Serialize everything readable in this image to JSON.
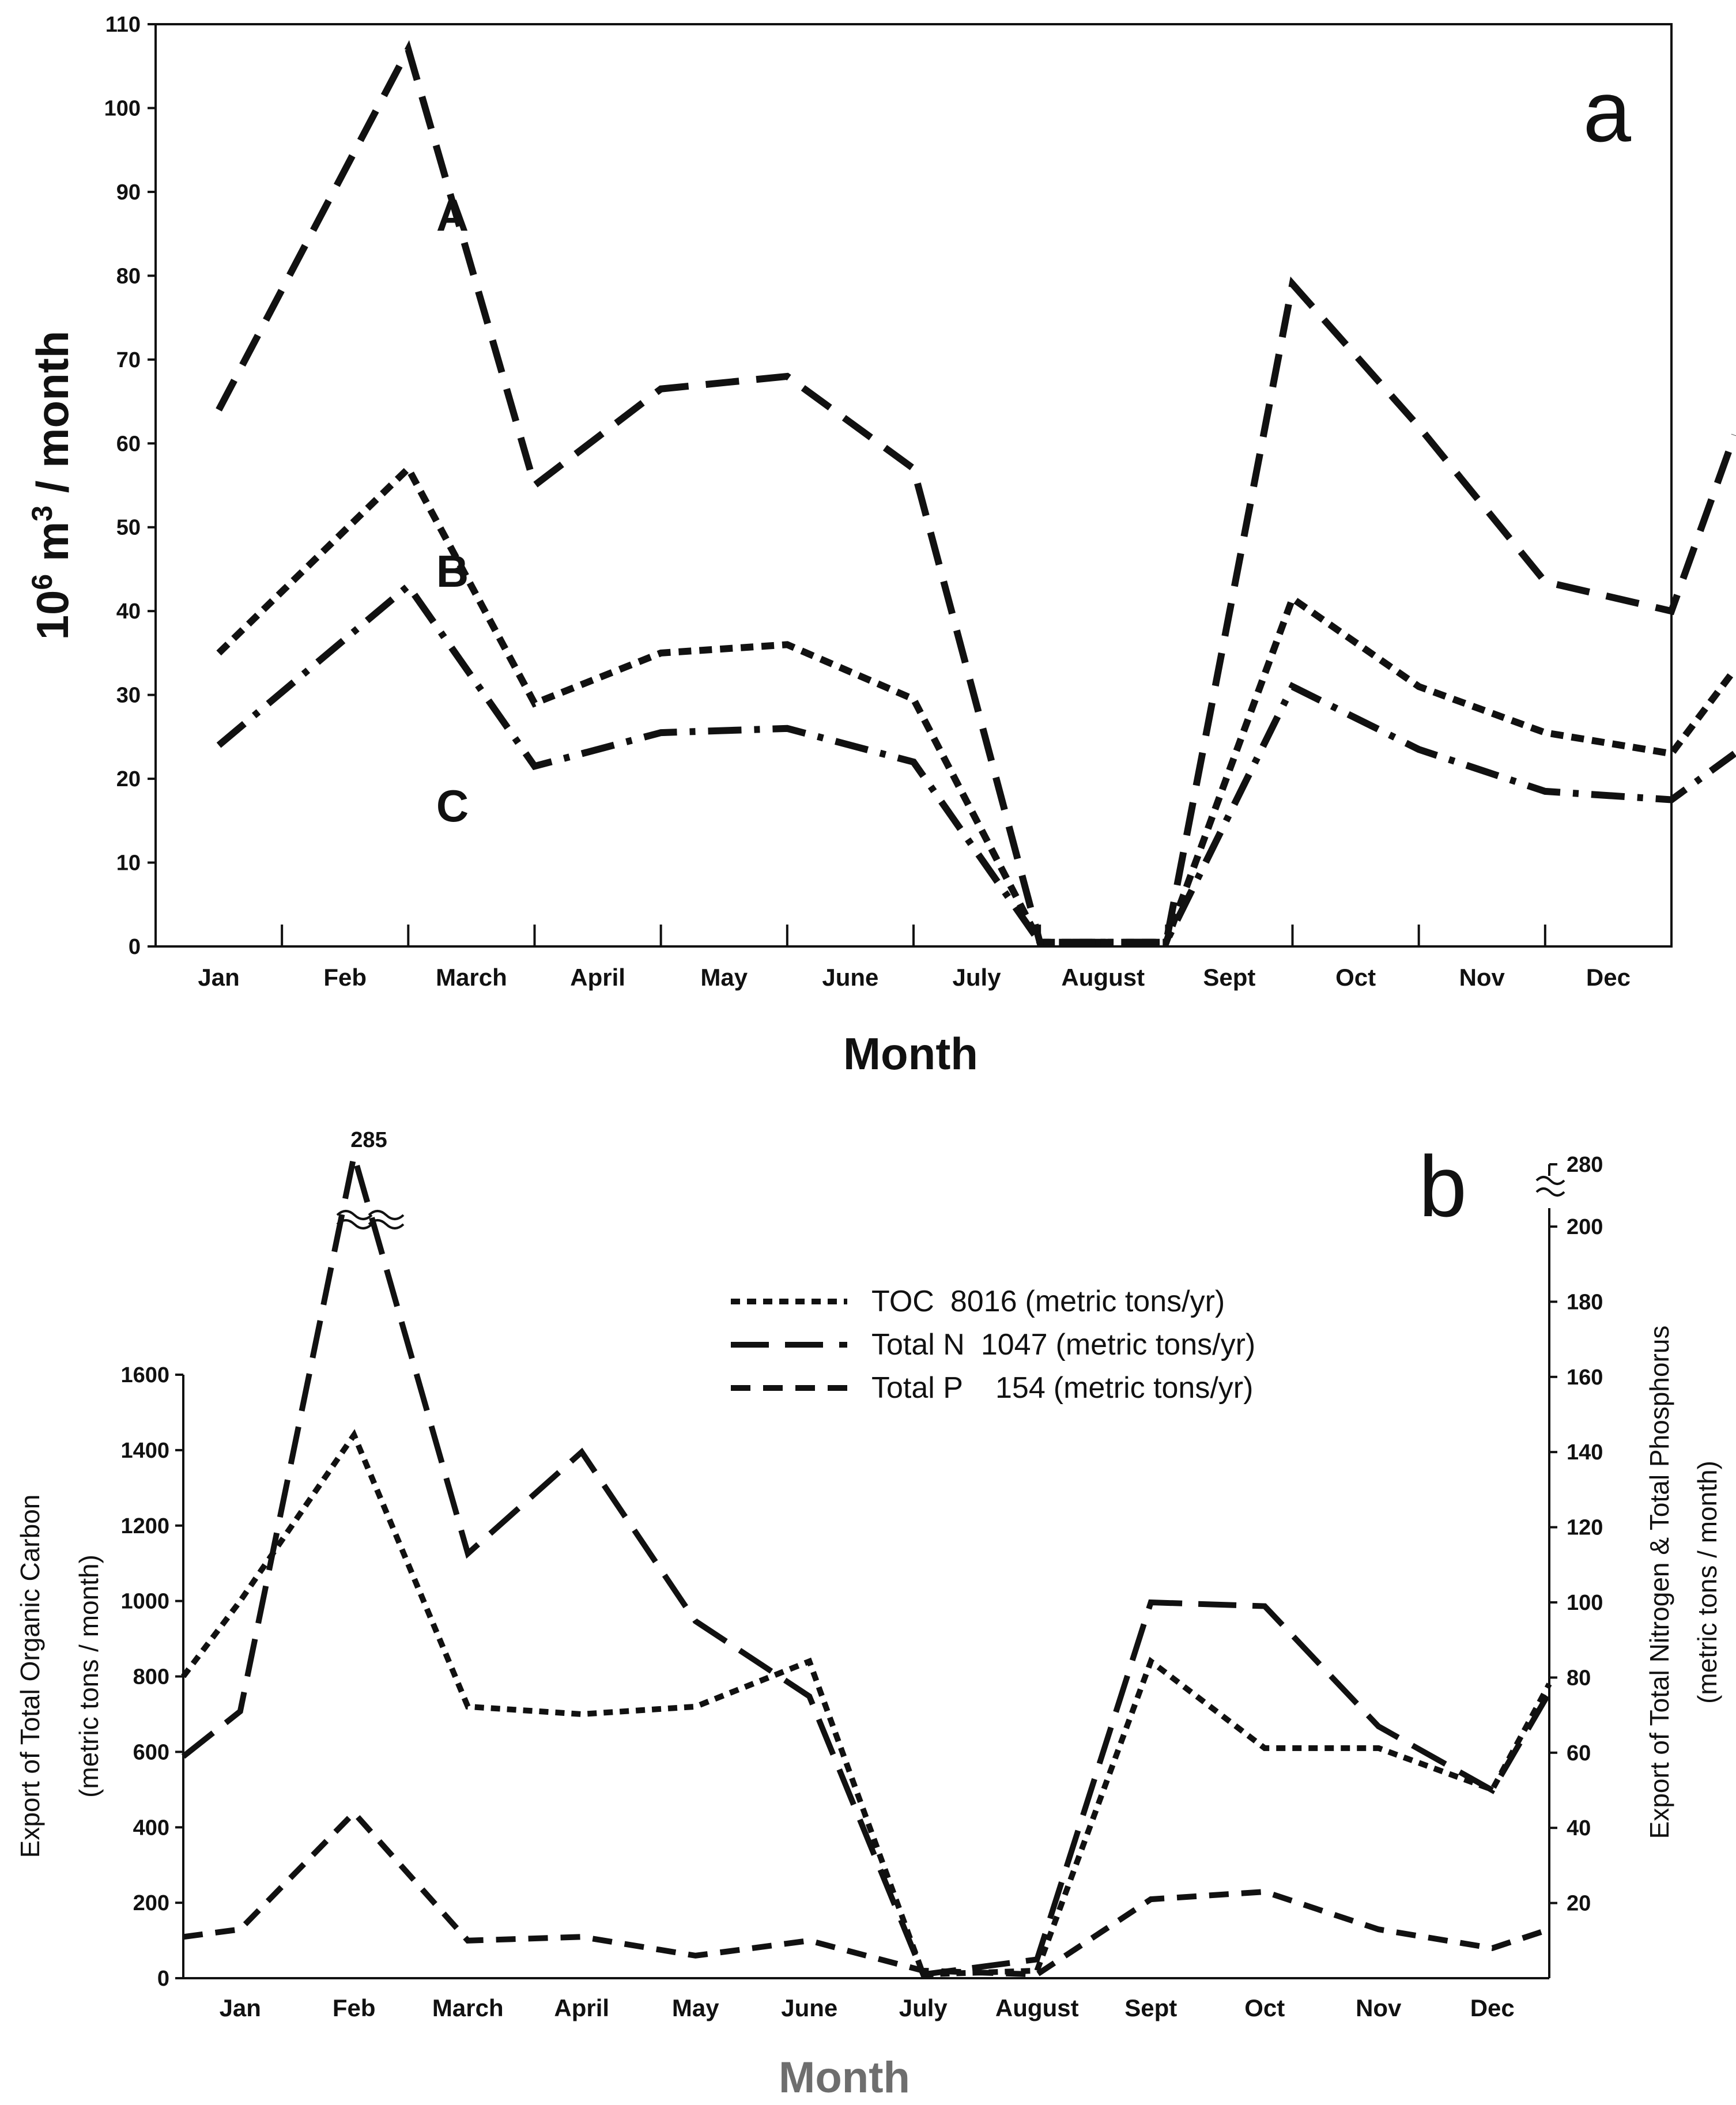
{
  "chart_data": [
    {
      "type": "line",
      "panel_label": "a",
      "title": "",
      "xlabel": "Month",
      "ylabel_base": "10",
      "ylabel_exp": "6",
      "ylabel_mid": " m",
      "ylabel_exp2": "3",
      "ylabel_tail": " / month",
      "ylim": [
        0,
        110
      ],
      "yticks": [
        "0",
        "10",
        "20",
        "30",
        "40",
        "50",
        "60",
        "70",
        "80",
        "90",
        "100",
        "110"
      ],
      "categories": [
        "Jan",
        "Feb",
        "March",
        "April",
        "May",
        "June",
        "July",
        "August",
        "Sept",
        "Oct",
        "Nov",
        "Dec"
      ],
      "series": [
        {
          "name": "A",
          "style": "long-dash",
          "x": [
            0.5,
            2.0,
            3.0,
            4.0,
            5.0,
            6.0,
            7.0,
            8.0,
            9.0,
            10.0,
            11.0,
            12.0,
            12.5
          ],
          "values": [
            64,
            107,
            55,
            66.5,
            68,
            57,
            0.5,
            0.5,
            79,
            62,
            43.5,
            40,
            61
          ]
        },
        {
          "name": "B",
          "style": "short-dash",
          "x": [
            0.5,
            2.0,
            3.0,
            4.0,
            5.0,
            6.0,
            7.0,
            8.0,
            9.0,
            10.0,
            11.0,
            12.0,
            12.5
          ],
          "values": [
            35,
            57,
            29,
            35,
            36,
            29.5,
            0.5,
            0.5,
            41.5,
            31,
            25.5,
            23,
            33
          ]
        },
        {
          "name": "C",
          "style": "dash-dot",
          "x": [
            0.5,
            2.0,
            3.0,
            4.0,
            5.0,
            6.0,
            7.0,
            8.0,
            9.0,
            10.0,
            11.0,
            12.0,
            12.5
          ],
          "values": [
            24,
            43,
            21.5,
            25.5,
            26,
            22,
            0.5,
            0.5,
            31,
            23.5,
            18.5,
            17.5,
            23
          ]
        }
      ]
    },
    {
      "type": "line",
      "panel_label": "b",
      "title": "",
      "xlabel": "Month",
      "ylabel_left_1": "Export of Total Organic Carbon",
      "ylabel_left_2": "(metric tons / month)",
      "ylabel_right_1": "Export of Total Nitrogen & Total Phosphorus",
      "ylabel_right_2": "(metric tons / month)",
      "ylim_left": [
        0,
        1600
      ],
      "yticks_left": [
        "0",
        "200",
        "400",
        "600",
        "800",
        "1000",
        "1200",
        "1400",
        "1600"
      ],
      "ylim_right": [
        0,
        200
      ],
      "yticks_right": [
        "20",
        "40",
        "60",
        "80",
        "100",
        "120",
        "140",
        "160",
        "180",
        "200"
      ],
      "right_axis_break_label": "280",
      "peak_annotation": "285",
      "categories": [
        "Jan",
        "Feb",
        "March",
        "April",
        "May",
        "June",
        "July",
        "August",
        "Sept",
        "Oct",
        "Nov",
        "Dec"
      ],
      "legend": [
        {
          "name": "TOC",
          "value": "8016",
          "unit": "(metric tons/yr)",
          "style": "short-dash"
        },
        {
          "name": "Total N",
          "value": "1047",
          "unit": "(metric tons/yr)",
          "style": "long-dash"
        },
        {
          "name": "Total P",
          "value": "154",
          "unit": "(metric tons/yr)",
          "style": "medium-dash"
        }
      ],
      "series": [
        {
          "name": "TOC",
          "axis": "left",
          "x": [
            0.0,
            0.5,
            1.5,
            2.5,
            3.5,
            4.5,
            5.5,
            6.5,
            7.5,
            8.5,
            9.5,
            10.5,
            11.5,
            12.0
          ],
          "values": [
            800,
            1000,
            1440,
            720,
            700,
            720,
            840,
            10,
            20,
            840,
            610,
            610,
            500,
            780
          ]
        },
        {
          "name": "Total N",
          "axis": "right",
          "x": [
            0.0,
            0.5,
            1.5,
            2.5,
            3.5,
            4.5,
            5.5,
            6.5,
            7.5,
            8.5,
            9.5,
            10.5,
            11.5,
            12.0
          ],
          "values": [
            59,
            71,
            285,
            113,
            140,
            95,
            75,
            1,
            5,
            100,
            99,
            67,
            50,
            76
          ]
        },
        {
          "name": "Total P",
          "axis": "right",
          "x": [
            0.0,
            0.5,
            1.5,
            2.5,
            3.5,
            4.5,
            5.5,
            6.5,
            7.5,
            8.5,
            9.5,
            10.5,
            11.5,
            12.0
          ],
          "values": [
            11,
            13,
            44,
            10,
            11,
            6,
            10,
            2,
            1,
            21,
            23,
            13,
            8,
            13
          ]
        }
      ]
    }
  ]
}
